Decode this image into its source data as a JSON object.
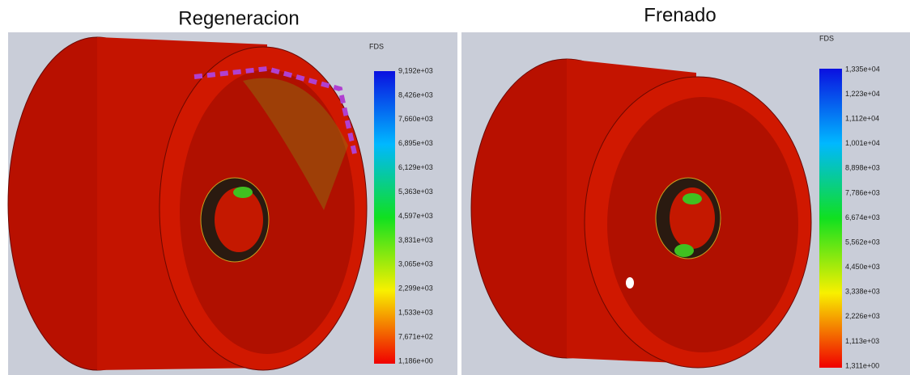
{
  "panels": [
    {
      "title": "Regeneracion",
      "legend_title": "FDS",
      "ticks": [
        "9,192e+03",
        "8,426e+03",
        "7,660e+03",
        "6,895e+03",
        "6,129e+03",
        "5,363e+03",
        "4,597e+03",
        "3,831e+03",
        "3,065e+03",
        "2,299e+03",
        "1,533e+03",
        "7,671e+02",
        "1,186e+00"
      ]
    },
    {
      "title": "Frenado",
      "legend_title": "FDS",
      "ticks": [
        "1,335e+04",
        "1,223e+04",
        "1,112e+04",
        "1,001e+04",
        "8,898e+03",
        "7,786e+03",
        "6,674e+03",
        "5,562e+03",
        "4,450e+03",
        "3,338e+03",
        "2,226e+03",
        "1,113e+03",
        "1,311e+00"
      ]
    }
  ]
}
